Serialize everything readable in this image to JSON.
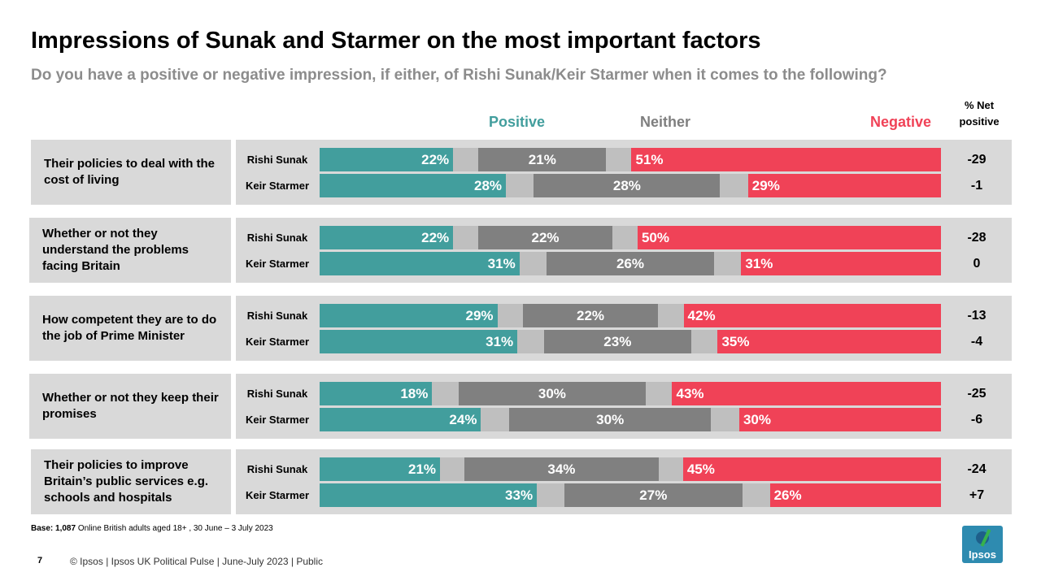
{
  "title": "Impressions of Sunak and Starmer on the most important factors",
  "subtitle": "Do you have a positive or negative impression, if either, of Rishi Sunak/Keir Starmer when it comes to the following?",
  "legend": {
    "positive": "Positive",
    "neither": "Neither",
    "negative": "Negative"
  },
  "net_header": {
    "line1": "% Net",
    "line2": "positive"
  },
  "colors": {
    "positive": "#429e9d",
    "neither": "#808080",
    "negative": "#f04257",
    "gap": "#bfbfbf",
    "panel": "#d9d9d9",
    "neither_label": "#7f7f7f"
  },
  "chart_data": {
    "type": "bar",
    "stacked": true,
    "orientation": "horizontal",
    "series_names": [
      "Positive",
      "Neither",
      "Negative"
    ],
    "groups": [
      {
        "label": "Their policies to deal with the cost of living",
        "rows": [
          {
            "name": "Rishi Sunak",
            "positive": 22,
            "neither": 21,
            "negative": 51,
            "net": "-29"
          },
          {
            "name": "Keir Starmer",
            "positive": 28,
            "neither": 28,
            "negative": 29,
            "net": "-1"
          }
        ]
      },
      {
        "label": "Whether or not they understand the problems facing Britain",
        "rows": [
          {
            "name": "Rishi Sunak",
            "positive": 22,
            "neither": 22,
            "negative": 50,
            "net": "-28"
          },
          {
            "name": "Keir Starmer",
            "positive": 31,
            "neither": 26,
            "negative": 31,
            "net": "0"
          }
        ]
      },
      {
        "label": "How competent they are to do the job of Prime Minister",
        "rows": [
          {
            "name": "Rishi Sunak",
            "positive": 29,
            "neither": 22,
            "negative": 42,
            "net": "-13"
          },
          {
            "name": "Keir Starmer",
            "positive": 31,
            "neither": 23,
            "negative": 35,
            "net": "-4"
          }
        ]
      },
      {
        "label": "Whether or not they keep their promises",
        "rows": [
          {
            "name": "Rishi Sunak",
            "positive": 18,
            "neither": 30,
            "negative": 43,
            "net": "-25"
          },
          {
            "name": "Keir Starmer",
            "positive": 24,
            "neither": 30,
            "negative": 30,
            "net": "-6"
          }
        ]
      },
      {
        "label": "Their policies to improve Britain’s public services e.g. schools and hospitals",
        "rows": [
          {
            "name": "Rishi Sunak",
            "positive": 21,
            "neither": 34,
            "negative": 45,
            "net": "-24"
          },
          {
            "name": "Keir Starmer",
            "positive": 33,
            "neither": 27,
            "negative": 26,
            "net": "+7"
          }
        ]
      }
    ]
  },
  "base_note": {
    "label": "Base:",
    "value": "1,087",
    "text": "Online British adults aged 18+ , 30 June – 3 July 2023"
  },
  "page_number": "7",
  "footer": "© Ipsos |  Ipsos UK Political Pulse | June-July 2023 | Public",
  "logo_text": "Ipsos"
}
